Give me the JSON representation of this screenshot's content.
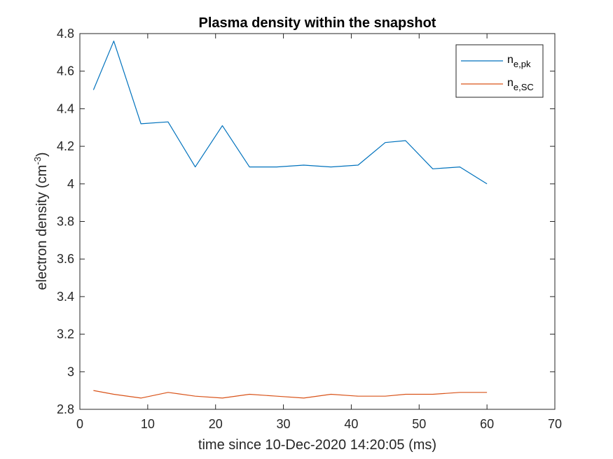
{
  "chart_data": {
    "type": "line",
    "title": "Plasma density within the snapshot",
    "xlabel": "time since 10-Dec-2020 14:20:05 (ms)",
    "ylabel_main": "electron density (cm",
    "ylabel_sup": "-3",
    "ylabel_end": ")",
    "xlim": [
      0,
      70
    ],
    "ylim": [
      2.8,
      4.8
    ],
    "xticks": [
      0,
      10,
      20,
      30,
      40,
      50,
      60,
      70
    ],
    "yticks": [
      2.8,
      3,
      3.2,
      3.4,
      3.6,
      3.8,
      4,
      4.2,
      4.4,
      4.6,
      4.8
    ],
    "xtick_labels": [
      "0",
      "10",
      "20",
      "30",
      "40",
      "50",
      "60",
      "70"
    ],
    "ytick_labels": [
      "2.8",
      "3",
      "3.2",
      "3.4",
      "3.6",
      "3.8",
      "4",
      "4.2",
      "4.4",
      "4.6",
      "4.8"
    ],
    "grid": false,
    "legend_position": "top-right",
    "series": [
      {
        "name_main": "n",
        "name_sub": "e,pk",
        "color": "#0072BD",
        "x": [
          2,
          5,
          9,
          13,
          17,
          21,
          25,
          29,
          33,
          37,
          41,
          45,
          48,
          52,
          56,
          60
        ],
        "y": [
          4.5,
          4.76,
          4.32,
          4.33,
          4.09,
          4.31,
          4.09,
          4.09,
          4.1,
          4.09,
          4.1,
          4.22,
          4.23,
          4.08,
          4.09,
          4.0
        ]
      },
      {
        "name_main": "n",
        "name_sub": "e,SC",
        "color": "#D95319",
        "x": [
          2,
          5,
          9,
          13,
          17,
          21,
          25,
          29,
          33,
          37,
          41,
          45,
          48,
          52,
          56,
          60
        ],
        "y": [
          2.9,
          2.88,
          2.86,
          2.89,
          2.87,
          2.86,
          2.88,
          2.87,
          2.86,
          2.88,
          2.87,
          2.87,
          2.88,
          2.88,
          2.89,
          2.89
        ]
      }
    ]
  }
}
